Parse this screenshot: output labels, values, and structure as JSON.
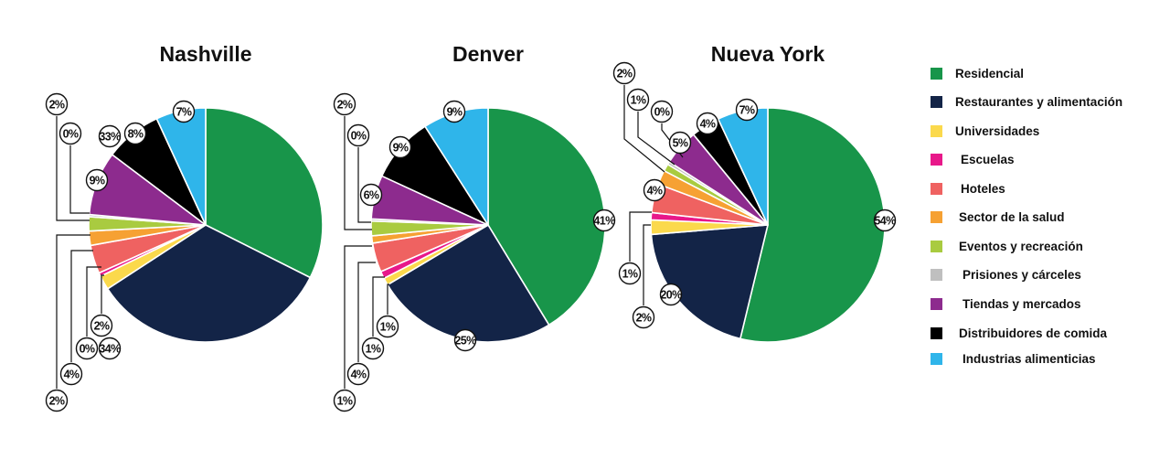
{
  "chart_data": [
    {
      "type": "pie",
      "title": "Nashville",
      "categories": [
        "Residencial",
        "Restaurantes y alimentación",
        "Universidades",
        "Escuelas",
        "Hoteles",
        "Sector de la salud",
        "Eventos y recreación",
        "Prisiones y cárceles",
        "Tiendas y mercados",
        "Distribuidores de comida",
        "Industrias alimenticias"
      ],
      "values": [
        33,
        34,
        2,
        0.5,
        4,
        2,
        2,
        0.3,
        9,
        8,
        7
      ],
      "labels": [
        "33%",
        "34%",
        "2%",
        "0%",
        "4%",
        "2%",
        "2%",
        "0%",
        "9%",
        "8%",
        "7%"
      ]
    },
    {
      "type": "pie",
      "title": "Denver",
      "categories": [
        "Residencial",
        "Restaurantes y alimentación",
        "Universidades",
        "Escuelas",
        "Hoteles",
        "Sector de la salud",
        "Eventos y recreación",
        "Prisiones y cárceles",
        "Tiendas y mercados",
        "Distribuidores de comida",
        "Industrias alimenticias"
      ],
      "values": [
        41,
        25,
        1,
        1,
        4,
        1,
        2,
        0.3,
        6,
        9,
        9
      ],
      "labels": [
        "41%",
        "25%",
        "1%",
        "1%",
        "4%",
        "1%",
        "2%",
        "0%",
        "6%",
        "9%",
        "9%"
      ]
    },
    {
      "type": "pie",
      "title": "Nueva York",
      "categories": [
        "Residencial",
        "Restaurantes y alimentación",
        "Universidades",
        "Escuelas",
        "Hoteles",
        "Sector de la salud",
        "Eventos y recreación",
        "Prisiones y cárceles",
        "Tiendas y mercados",
        "Distribuidores de comida",
        "Industrias alimenticias"
      ],
      "values": [
        54,
        20,
        2,
        1,
        4,
        2,
        1,
        0.4,
        5,
        4,
        7
      ],
      "labels": [
        "54%",
        "20%",
        "2%",
        "1%",
        "4%",
        "2%",
        "1%",
        "0%",
        "5%",
        "4%",
        "7%"
      ]
    }
  ],
  "legend": [
    {
      "label": "Residencial",
      "color": "#18954a"
    },
    {
      "label": "Restaurantes y alimentación",
      "color": "#132447"
    },
    {
      "label": "Universidades",
      "color": "#fbd94c"
    },
    {
      "label": "Escuelas",
      "color": "#e8188a"
    },
    {
      "label": "Hoteles",
      "color": "#ef6261"
    },
    {
      "label": "Sector de la salud",
      "color": "#f6a133"
    },
    {
      "label": "Eventos y recreación",
      "color": "#a9cb40"
    },
    {
      "label": "Prisiones y cárceles",
      "color": "#bfbfbf"
    },
    {
      "label": "Tiendas y mercados",
      "color": "#8d2b8e"
    },
    {
      "label": "Distribuidores de comida",
      "color": "#000000"
    },
    {
      "label": "Industrias alimenticias",
      "color": "#2fb5ea"
    }
  ]
}
